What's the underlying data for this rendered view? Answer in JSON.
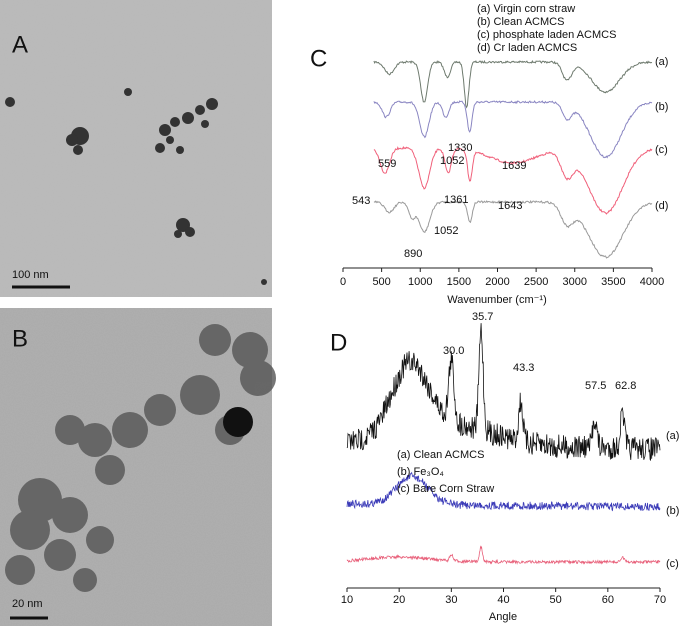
{
  "panels": {
    "A": {
      "label": "A",
      "scale_bar": "100 nm"
    },
    "B": {
      "label": "B",
      "scale_bar": "20 nm"
    },
    "C": {
      "label": "C",
      "legend": [
        "(a) Virgin corn straw",
        "(b) Clean ACMCS",
        "(c) phosphate laden ACMCS",
        "(d) Cr laden ACMCS"
      ],
      "xlabel": "Wavenumber (cm⁻¹)",
      "xticks": [
        0,
        500,
        1000,
        1500,
        2000,
        2500,
        3000,
        3500,
        4000
      ],
      "curve_labels": [
        "(a)",
        "(b)",
        "(c)",
        "(d)"
      ],
      "peak_labels": [
        "559",
        "1052",
        "1330",
        "1639",
        "543",
        "1361",
        "1643",
        "1052",
        "890"
      ]
    },
    "D": {
      "label": "D",
      "legend": [
        "(a) Clean ACMCS",
        "(b) Fe₃O₄",
        "(c) Bare Corn Straw"
      ],
      "xlabel": "Angle",
      "xticks": [
        10,
        20,
        30,
        40,
        50,
        60,
        70
      ],
      "curve_labels": [
        "(a)",
        "(b)",
        "(c)"
      ],
      "peak_labels": [
        "30.0",
        "35.7",
        "43.3",
        "57.5",
        "62.8"
      ]
    }
  }
}
